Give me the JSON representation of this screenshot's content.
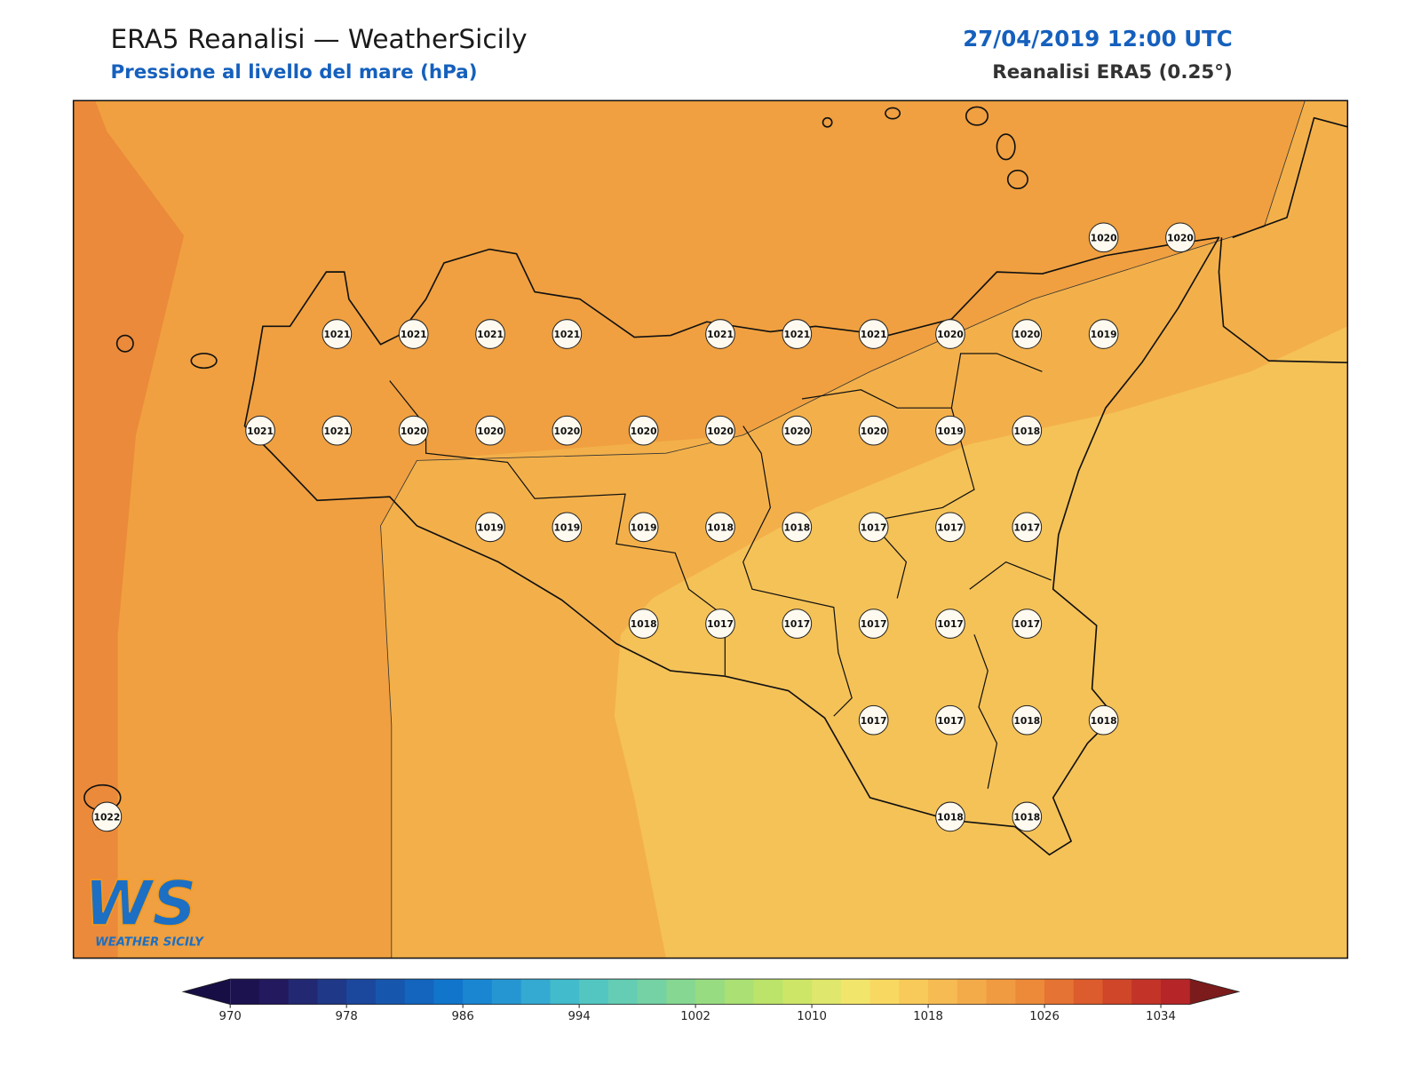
{
  "header": {
    "title": "ERA5 Reanalisi — WeatherSicily",
    "subtitle": "Pressione al livello del mare (hPa)",
    "datetime": "27/04/2019 12:00 UTC",
    "source": "Reanalisi ERA5 (0.25°)"
  },
  "map": {
    "station_grid": [
      [
        null,
        null,
        null,
        null,
        null,
        null,
        null,
        null,
        null,
        null,
        null,
        null,
        null,
        1020,
        1020
      ],
      [
        null,
        null,
        null,
        1021,
        1021,
        1021,
        1021,
        null,
        1021,
        1021,
        1021,
        1020,
        1020,
        1019,
        null
      ],
      [
        null,
        null,
        1021,
        1021,
        1020,
        1020,
        1020,
        1020,
        1020,
        1020,
        1020,
        1019,
        1018,
        null,
        null
      ],
      [
        null,
        null,
        null,
        null,
        null,
        1019,
        1019,
        1019,
        1018,
        1018,
        1017,
        1017,
        1017,
        null,
        null
      ],
      [
        null,
        null,
        null,
        null,
        null,
        null,
        null,
        1018,
        1017,
        1017,
        1017,
        1017,
        1017,
        null,
        null
      ],
      [
        null,
        null,
        null,
        null,
        null,
        null,
        null,
        null,
        null,
        null,
        1017,
        1017,
        1018,
        1018,
        null
      ],
      [
        1022,
        null,
        null,
        null,
        null,
        null,
        null,
        null,
        null,
        null,
        null,
        1018,
        1018,
        null,
        null
      ]
    ]
  },
  "colorbar": {
    "range": [
      970,
      1036
    ],
    "ticks": [
      970,
      978,
      986,
      994,
      1002,
      1010,
      1018,
      1026,
      1034
    ],
    "colors": [
      "#1d1250",
      "#22195f",
      "#232873",
      "#1f3888",
      "#1b479c",
      "#1756ad",
      "#1365bd",
      "#1175cb",
      "#1a86d2",
      "#2696d2",
      "#34a9d2",
      "#42bbcc",
      "#54c6c2",
      "#64cdb4",
      "#74d2a4",
      "#86d792",
      "#98dc82",
      "#aae074",
      "#bce36a",
      "#cde668",
      "#dfe76c",
      "#f2e56c",
      "#f9d862",
      "#f8ca5a",
      "#f6bb52",
      "#f3ab4a",
      "#f09b42",
      "#ec8a3a",
      "#e57333",
      "#dc5c2d",
      "#cf4629",
      "#c33328",
      "#b62628"
    ],
    "under_color": "#170e45",
    "over_color": "#7b1b1b"
  },
  "logo": {
    "mark": "WS",
    "name": "WEATHER SICILY"
  }
}
